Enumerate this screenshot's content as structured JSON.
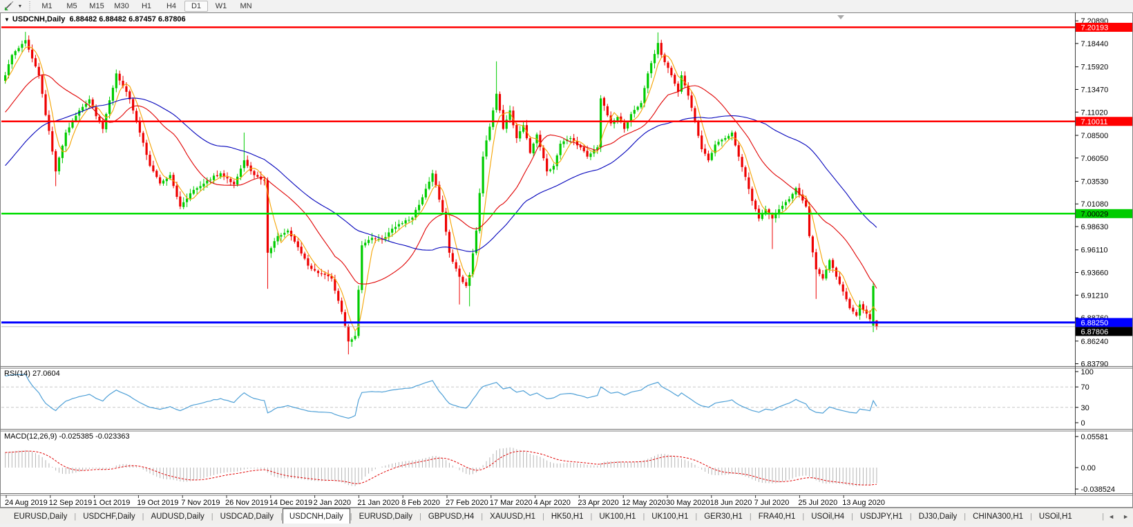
{
  "toolbar": {
    "dropdown_caret": "▼",
    "timeframes": [
      "M1",
      "M5",
      "M15",
      "M30",
      "H1",
      "H4",
      "D1",
      "W1",
      "MN"
    ],
    "active_timeframe": "D1"
  },
  "chart": {
    "title_caret": "▼",
    "title_symbol": "USDCNH,Daily",
    "title_quotes": "6.88482 6.88482 6.87457 6.87806",
    "rsi_label": "RSI(14) 27.0604",
    "macd_label": "MACD(12,26,9) -0.025385 -0.023363"
  },
  "chart_data": {
    "type": "candlestick",
    "symbol": "USDCNH",
    "timeframe": "Daily",
    "current_bar": {
      "open": 6.88482,
      "high": 6.88482,
      "low": 6.87457,
      "close": 6.87806
    },
    "colors": {
      "bull": "#00CC00",
      "bear": "#EE0000",
      "background": "#FFFFFF",
      "axis_text": "#000000"
    },
    "price_axis_ticks": [
      "7.20890",
      "7.18440",
      "7.15920",
      "7.13470",
      "7.11020",
      "7.08500",
      "7.06050",
      "7.03530",
      "7.01080",
      "6.98630",
      "6.96110",
      "6.93660",
      "6.91210",
      "6.88760",
      "6.86240",
      "6.83790"
    ],
    "price_badges": [
      {
        "text": "7.20193",
        "bg": "#FF0000",
        "fg": "#FFFFFF"
      },
      {
        "text": "7.10011",
        "bg": "#FF0000",
        "fg": "#FFFFFF"
      },
      {
        "text": "7.00029",
        "bg": "#00CC00",
        "fg": "#000000"
      },
      {
        "text": "6.88250",
        "bg": "#0000FF",
        "fg": "#FFFFFF"
      },
      {
        "text": "6.87806",
        "bg": "#000000",
        "fg": "#FFFFFF"
      }
    ],
    "hlines": [
      {
        "price": 7.20193,
        "color": "#FF0000",
        "width": 2.5
      },
      {
        "price": 7.10011,
        "color": "#FF0000",
        "width": 2.5
      },
      {
        "price": 7.00029,
        "color": "#00DD00",
        "width": 2.5
      },
      {
        "price": 6.8825,
        "color": "#0000FF",
        "width": 3
      },
      {
        "price": 6.87806,
        "color": "#BBBBBB",
        "width": 1
      }
    ],
    "date_ticks": [
      "24 Aug 2019",
      "12 Sep 2019",
      "1 Oct 2019",
      "19 Oct 2019",
      "7 Nov 2019",
      "26 Nov 2019",
      "14 Dec 2019",
      "2 Jan 2020",
      "21 Jan 2020",
      "8 Feb 2020",
      "27 Feb 2020",
      "17 Mar 2020",
      "4 Apr 2020",
      "23 Apr 2020",
      "12 May 2020",
      "30 May 2020",
      "18 Jun 2020",
      "7 Jul 2020",
      "25 Jul 2020",
      "13 Aug 2020"
    ],
    "candles": {
      "count": 260,
      "close_anchors": [
        [
          0,
          7.15
        ],
        [
          2,
          7.172
        ],
        [
          6,
          7.188
        ],
        [
          10,
          7.15
        ],
        [
          15,
          7.046
        ],
        [
          18,
          7.088
        ],
        [
          22,
          7.112
        ],
        [
          25,
          7.124
        ],
        [
          29,
          7.092
        ],
        [
          33,
          7.152
        ],
        [
          37,
          7.124
        ],
        [
          40,
          7.088
        ],
        [
          43,
          7.052
        ],
        [
          46,
          7.033
        ],
        [
          49,
          7.042
        ],
        [
          52,
          7.008
        ],
        [
          56,
          7.026
        ],
        [
          60,
          7.036
        ],
        [
          64,
          7.044
        ],
        [
          68,
          7.032
        ],
        [
          71,
          7.058
        ],
        [
          74,
          7.042
        ],
        [
          77,
          7.036
        ],
        [
          78,
          6.958
        ],
        [
          81,
          6.976
        ],
        [
          84,
          6.982
        ],
        [
          87,
          6.964
        ],
        [
          90,
          6.944
        ],
        [
          93,
          6.936
        ],
        [
          97,
          6.93
        ],
        [
          100,
          6.894
        ],
        [
          102,
          6.862
        ],
        [
          104,
          6.868
        ],
        [
          106,
          6.966
        ],
        [
          109,
          6.974
        ],
        [
          112,
          6.972
        ],
        [
          115,
          6.984
        ],
        [
          118,
          6.99
        ],
        [
          121,
          6.996
        ],
        [
          124,
          7.018
        ],
        [
          127,
          7.044
        ],
        [
          130,
          7.002
        ],
        [
          132,
          6.958
        ],
        [
          135,
          6.932
        ],
        [
          137,
          6.922
        ],
        [
          138,
          6.934
        ],
        [
          140,
          6.982
        ],
        [
          142,
          7.062
        ],
        [
          145,
          7.112
        ],
        [
          146,
          7.13
        ],
        [
          148,
          7.092
        ],
        [
          150,
          7.112
        ],
        [
          152,
          7.082
        ],
        [
          154,
          7.096
        ],
        [
          156,
          7.066
        ],
        [
          158,
          7.086
        ],
        [
          161,
          7.046
        ],
        [
          163,
          7.052
        ],
        [
          165,
          7.076
        ],
        [
          168,
          7.082
        ],
        [
          171,
          7.072
        ],
        [
          173,
          7.062
        ],
        [
          176,
          7.072
        ],
        [
          177,
          7.125
        ],
        [
          180,
          7.098
        ],
        [
          182,
          7.105
        ],
        [
          184,
          7.092
        ],
        [
          186,
          7.108
        ],
        [
          189,
          7.12
        ],
        [
          191,
          7.152
        ],
        [
          194,
          7.185
        ],
        [
          195,
          7.172
        ],
        [
          198,
          7.15
        ],
        [
          200,
          7.132
        ],
        [
          201,
          7.15
        ],
        [
          203,
          7.128
        ],
        [
          205,
          7.1
        ],
        [
          207,
          7.07
        ],
        [
          209,
          7.058
        ],
        [
          211,
          7.075
        ],
        [
          214,
          7.082
        ],
        [
          216,
          7.088
        ],
        [
          218,
          7.062
        ],
        [
          220,
          7.04
        ],
        [
          222,
          7.014
        ],
        [
          224,
          6.995
        ],
        [
          226,
          7.005
        ],
        [
          228,
          6.995
        ],
        [
          230,
          7.005
        ],
        [
          233,
          7.016
        ],
        [
          235,
          7.028
        ],
        [
          238,
          7.008
        ],
        [
          239,
          6.976
        ],
        [
          241,
          6.94
        ],
        [
          243,
          6.93
        ],
        [
          245,
          6.95
        ],
        [
          247,
          6.932
        ],
        [
          249,
          6.916
        ],
        [
          251,
          6.898
        ],
        [
          253,
          6.89
        ],
        [
          254,
          6.902
        ],
        [
          255,
          6.896
        ],
        [
          256,
          6.892
        ],
        [
          257,
          6.886
        ],
        [
          258,
          6.922
        ],
        [
          259,
          6.87806
        ]
      ],
      "overrides": {
        "6": {
          "high": 7.197
        },
        "15": {
          "low": 7.03
        },
        "71": {
          "high": 7.088
        },
        "78": {
          "low": 6.919
        },
        "102": {
          "low": 6.848
        },
        "135": {
          "low": 6.902
        },
        "138": {
          "low": 6.9
        },
        "146": {
          "high": 7.1651
        },
        "194": {
          "high": 7.1964
        },
        "228": {
          "low": 6.962
        },
        "241": {
          "low": 6.908
        },
        "258": {
          "open": 6.879,
          "close": 6.922,
          "low": 6.872,
          "high": 6.926
        },
        "259": {
          "open": 6.88482,
          "high": 6.88482,
          "low": 6.87457,
          "close": 6.87806
        }
      }
    },
    "moving_averages": [
      {
        "name": "fast",
        "period": 5,
        "color": "#F5A300"
      },
      {
        "name": "mid",
        "period": 21,
        "color": "#E00000"
      },
      {
        "name": "slow",
        "period": 50,
        "color": "#0000BB"
      }
    ],
    "rsi": {
      "period": 14,
      "current": 27.0604,
      "levels": [
        "100",
        "70",
        "30",
        "0"
      ],
      "level_values": [
        100,
        70,
        30,
        0
      ],
      "dashed_levels": [
        70,
        30
      ],
      "color": "#4D9FD6"
    },
    "macd": {
      "fast": 12,
      "slow": 26,
      "signal_period": 9,
      "current": -0.025385,
      "current_signal": -0.023363,
      "axis_labels": [
        "0.05581",
        "0.00",
        "-0.038524"
      ],
      "axis_values": [
        0.05581,
        0.0,
        -0.038524
      ],
      "hist_color": "#B4B4B4",
      "signal_color": "#E00000"
    }
  },
  "tabs": {
    "items": [
      "EURUSD,Daily",
      "USDCHF,Daily",
      "AUDUSD,Daily",
      "USDCAD,Daily",
      "USDCNH,Daily",
      "EURUSD,Daily",
      "GBPUSD,H4",
      "XAUUSD,H1",
      "HK50,H1",
      "UK100,H1",
      "UK100,H1",
      "GER30,H1",
      "FRA40,H1",
      "USOil,H4",
      "USDJPY,H1",
      "DJ30,Daily",
      "CHINA300,H1",
      "USOil,H1"
    ],
    "active_index": 4,
    "scroll_left_icon": "◄",
    "scroll_right_icon": "►"
  }
}
